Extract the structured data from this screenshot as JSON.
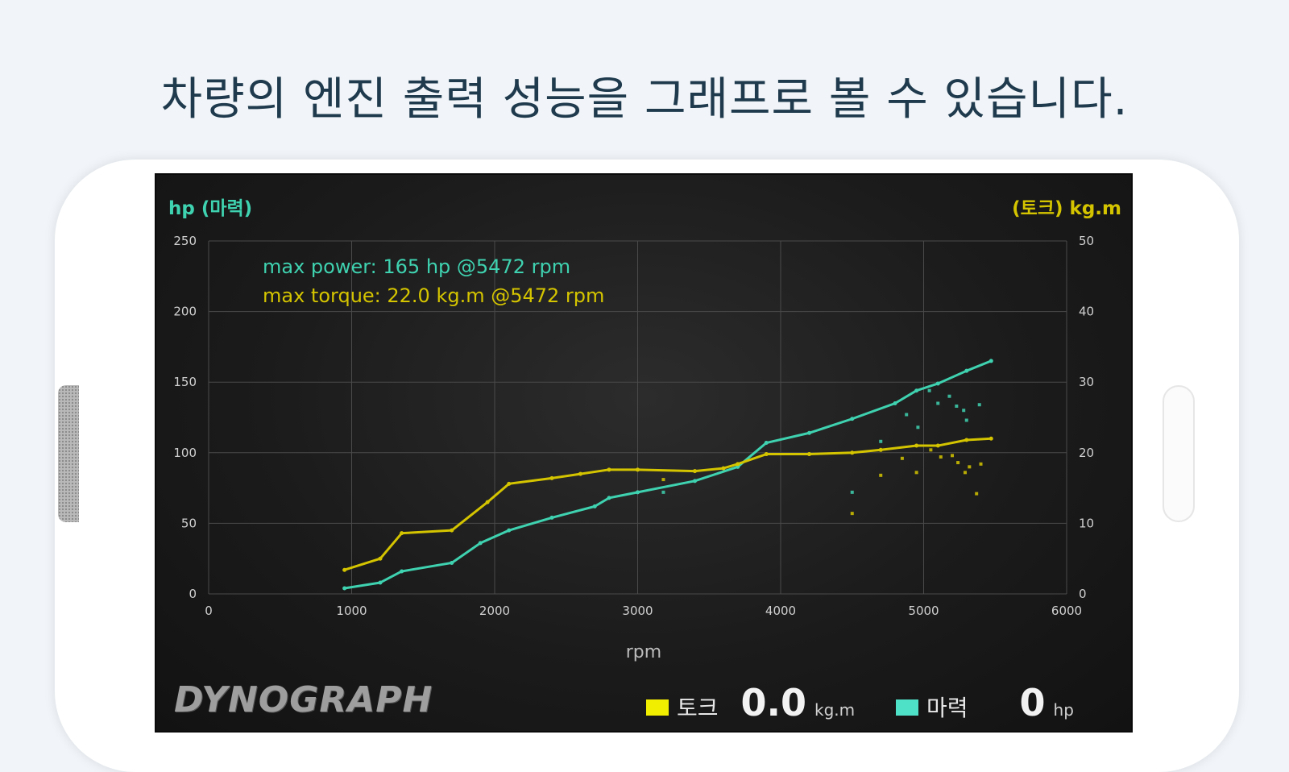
{
  "headline": "차량의 엔진 출력 성능을 그래프로 볼 수 있습니다.",
  "colors": {
    "power": "#3fd2b0",
    "torque": "#d4c400",
    "grid": "#4a4a4a",
    "tick": "#d0d0d0"
  },
  "axis": {
    "left_title": "hp (마력)",
    "right_title": "(토크) kg.m",
    "x_title": "rpm"
  },
  "annotations": {
    "max_power": "max power: 165 hp @5472 rpm",
    "max_torque": "max torque: 22.0 kg.m @5472 rpm"
  },
  "footer": {
    "logo": "DYNOGRAPH",
    "torque_label": "토크",
    "torque_value": "0.0",
    "torque_unit": "kg.m",
    "power_label": "마력",
    "power_value": "0",
    "power_unit": "hp"
  },
  "chart_data": {
    "type": "line",
    "xlabel": "rpm",
    "ylabel_left": "hp (마력)",
    "ylabel_right": "(토크) kg.m",
    "xlim": [
      0,
      6000
    ],
    "ylim_left": [
      0,
      250
    ],
    "ylim_right": [
      0,
      50
    ],
    "x_ticks": [
      0,
      1000,
      2000,
      3000,
      4000,
      5000,
      6000
    ],
    "y_left_ticks": [
      0,
      50,
      100,
      150,
      200,
      250
    ],
    "y_right_ticks": [
      0,
      10,
      20,
      30,
      40,
      50
    ],
    "grid": true,
    "series": [
      {
        "name": "마력",
        "axis": "left",
        "x": [
          950,
          1200,
          1350,
          1700,
          1900,
          2100,
          2400,
          2700,
          2800,
          3000,
          3400,
          3700,
          3900,
          4200,
          4500,
          4800,
          4950,
          5100,
          5300,
          5472
        ],
        "y": [
          4,
          8,
          16,
          22,
          36,
          45,
          54,
          62,
          68,
          72,
          80,
          90,
          107,
          114,
          124,
          135,
          144,
          149,
          158,
          165
        ]
      },
      {
        "name": "토크",
        "axis": "right",
        "x": [
          950,
          1200,
          1350,
          1700,
          1950,
          2100,
          2400,
          2600,
          2800,
          3000,
          3400,
          3600,
          3700,
          3900,
          4200,
          4500,
          4700,
          4950,
          5100,
          5300,
          5472
        ],
        "y": [
          3.4,
          5.0,
          8.6,
          9.0,
          13.0,
          15.6,
          16.4,
          17.0,
          17.6,
          17.6,
          17.4,
          17.8,
          18.4,
          19.8,
          19.8,
          20.0,
          20.4,
          21.0,
          21.0,
          21.8,
          22.0
        ]
      }
    ],
    "scatter": [
      {
        "name": "마력 samples",
        "axis": "left",
        "x": [
          3180,
          4500,
          4700,
          4880,
          4960,
          5040,
          5100,
          5180,
          5230,
          5280,
          5300,
          5390
        ],
        "y": [
          72,
          72,
          108,
          127,
          118,
          144,
          135,
          140,
          133,
          130,
          123,
          134
        ]
      },
      {
        "name": "토크 samples",
        "axis": "right",
        "x": [
          3180,
          4500,
          4700,
          4850,
          4950,
          5050,
          5120,
          5200,
          5240,
          5290,
          5320,
          5370,
          5400
        ],
        "y": [
          16.2,
          11.4,
          16.8,
          19.2,
          17.2,
          20.4,
          19.4,
          19.6,
          18.6,
          17.2,
          18.0,
          14.2,
          18.4
        ]
      }
    ]
  }
}
